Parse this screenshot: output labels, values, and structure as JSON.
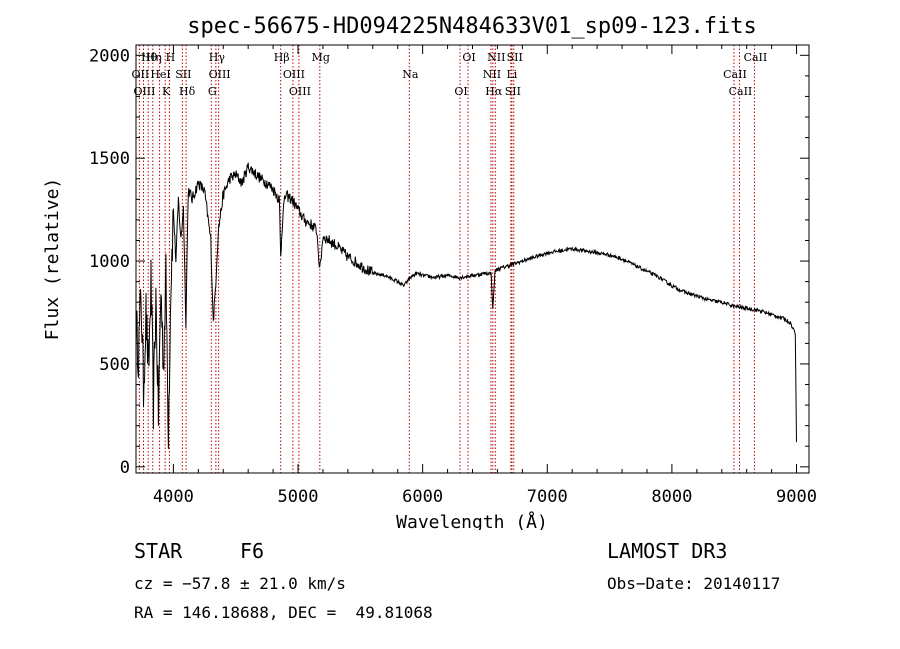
{
  "chart_data": {
    "type": "line",
    "title": "spec-56675-HD094225N484633V01_sp09-123.fits",
    "xlabel": "Wavelength (Å)",
    "ylabel": "Flux (relative)",
    "xlim": [
      3700,
      9100
    ],
    "ylim": [
      -30,
      2050
    ],
    "xticks": [
      4000,
      5000,
      6000,
      7000,
      8000,
      9000
    ],
    "xtick_labels": [
      "4000",
      "5000",
      "6000",
      "7000",
      "8000",
      "9000"
    ],
    "yticks": [
      0,
      500,
      1000,
      1500,
      2000
    ],
    "ytick_labels": [
      "0",
      "500",
      "1000",
      "1500",
      "2000"
    ],
    "grid": false,
    "series": [
      {
        "name": "spectrum",
        "x": [
          3700,
          3720,
          3740,
          3760,
          3780,
          3800,
          3820,
          3840,
          3860,
          3880,
          3900,
          3920,
          3940,
          3960,
          3980,
          4000,
          4020,
          4040,
          4060,
          4080,
          4100,
          4120,
          4150,
          4200,
          4250,
          4300,
          4320,
          4340,
          4360,
          4400,
          4450,
          4500,
          4550,
          4600,
          4650,
          4700,
          4750,
          4800,
          4850,
          4861,
          4880,
          4900,
          4950,
          5000,
          5050,
          5100,
          5150,
          5175,
          5200,
          5250,
          5300,
          5400,
          5500,
          5600,
          5700,
          5800,
          5850,
          5900,
          5950,
          6000,
          6100,
          6200,
          6300,
          6400,
          6500,
          6550,
          6563,
          6580,
          6600,
          6700,
          6800,
          6900,
          7000,
          7100,
          7200,
          7300,
          7400,
          7500,
          7600,
          7700,
          7800,
          7900,
          8000,
          8100,
          8200,
          8300,
          8400,
          8500,
          8600,
          8700,
          8800,
          8900,
          8950,
          8990,
          9000
        ],
        "y": [
          700,
          550,
          850,
          380,
          750,
          450,
          900,
          300,
          820,
          250,
          870,
          500,
          920,
          180,
          900,
          1250,
          1000,
          1300,
          1100,
          1260,
          700,
          1350,
          1300,
          1380,
          1340,
          1100,
          700,
          900,
          1150,
          1320,
          1400,
          1420,
          1380,
          1460,
          1430,
          1400,
          1380,
          1350,
          1300,
          1020,
          1250,
          1320,
          1300,
          1250,
          1200,
          1180,
          1150,
          950,
          1120,
          1100,
          1080,
          1020,
          980,
          940,
          930,
          900,
          880,
          920,
          940,
          930,
          920,
          930,
          920,
          930,
          940,
          940,
          760,
          950,
          960,
          980,
          1000,
          1020,
          1040,
          1050,
          1060,
          1050,
          1040,
          1030,
          1010,
          980,
          950,
          920,
          880,
          850,
          830,
          810,
          800,
          780,
          770,
          760,
          740,
          720,
          700,
          650,
          120
        ]
      }
    ],
    "lines": [
      {
        "label": "Hθ",
        "x": 3798
      },
      {
        "label": "OII",
        "x": 3727
      },
      {
        "label": "OIII",
        "x": 3760
      },
      {
        "label": "Hη",
        "x": 3835
      },
      {
        "label": "HeI",
        "x": 3889
      },
      {
        "label": "K",
        "x": 3934
      },
      {
        "label": "H",
        "x": 3968
      },
      {
        "label": "SII",
        "x": 4072
      },
      {
        "label": "Hδ",
        "x": 4102
      },
      {
        "label": "Hγ",
        "x": 4341
      },
      {
        "label": "OIII",
        "x": 4363
      },
      {
        "label": "G",
        "x": 4304
      },
      {
        "label": "Hβ",
        "x": 4861
      },
      {
        "label": "OIII",
        "x": 4959
      },
      {
        "label": "OIII",
        "x": 5007
      },
      {
        "label": "Mg",
        "x": 5175
      },
      {
        "label": "Na",
        "x": 5893
      },
      {
        "label": "OI",
        "x": 6300
      },
      {
        "label": "OI",
        "x": 6364
      },
      {
        "label": "NII",
        "x": 6548
      },
      {
        "label": "Hα",
        "x": 6563
      },
      {
        "label": "NII",
        "x": 6583
      },
      {
        "label": "Li",
        "x": 6708
      },
      {
        "label": "SII",
        "x": 6716
      },
      {
        "label": "SII",
        "x": 6731
      },
      {
        "label": "CaII",
        "x": 8498
      },
      {
        "label": "CaII",
        "x": 8542
      },
      {
        "label": "CaII",
        "x": 8662
      }
    ]
  },
  "info": {
    "class_label": "STAR",
    "subclass": "F6",
    "survey": "LAMOST DR3",
    "cz_text": "cz = −57.8 ± 21.0 km/s",
    "obs_date_text": "Obs−Date: 20140117",
    "radec_text": "RA = 146.18688, DEC =  49.81068"
  },
  "colors": {
    "axis": "#000000",
    "spectrum": "#000000",
    "line_markers": "#c00000"
  }
}
